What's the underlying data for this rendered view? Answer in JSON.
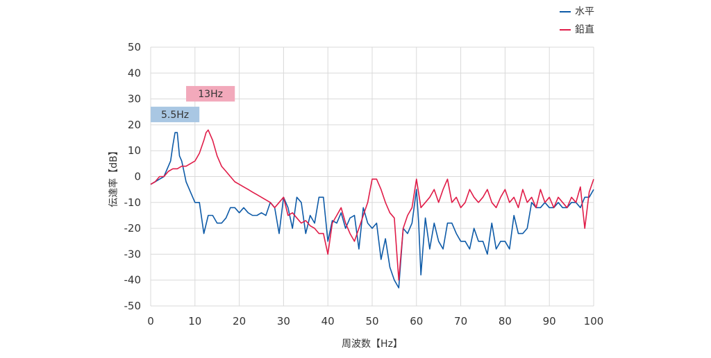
{
  "chart_data": {
    "type": "line",
    "xlabel": "周波数【Hz】",
    "ylabel": "伝達率【dB】",
    "xlim": [
      0,
      100
    ],
    "ylim": [
      -50,
      50
    ],
    "x_ticks": [
      "0",
      "10",
      "20",
      "30",
      "40",
      "50",
      "60",
      "70",
      "80",
      "90",
      "100"
    ],
    "y_ticks": [
      "50",
      "40",
      "30",
      "20",
      "10",
      "0",
      "-10",
      "-20",
      "-30",
      "-40",
      "-50"
    ],
    "grid": true,
    "legend_position": "top-right",
    "annotations": [
      {
        "text": "5.5Hz",
        "color": "#a9c7e3",
        "x_from": 0,
        "x_to": 11,
        "y_from": 21,
        "y_to": 27
      },
      {
        "text": "13Hz",
        "color": "#f2a9bb",
        "x_from": 8,
        "x_to": 19,
        "y_from": 29,
        "y_to": 35
      }
    ],
    "series": [
      {
        "name": "水平",
        "color": "#0d5aa7",
        "points": [
          [
            0,
            -3
          ],
          [
            1,
            -2
          ],
          [
            2,
            -1
          ],
          [
            3,
            0
          ],
          [
            3.5,
            2
          ],
          [
            4,
            4
          ],
          [
            4.5,
            6
          ],
          [
            5,
            12
          ],
          [
            5.5,
            17
          ],
          [
            6,
            17
          ],
          [
            6.5,
            8
          ],
          [
            7,
            6
          ],
          [
            7.5,
            2
          ],
          [
            8,
            -2
          ],
          [
            8.5,
            -4
          ],
          [
            9,
            -6
          ],
          [
            10,
            -10
          ],
          [
            11,
            -10
          ],
          [
            12,
            -22
          ],
          [
            13,
            -15
          ],
          [
            14,
            -15
          ],
          [
            15,
            -18
          ],
          [
            16,
            -18
          ],
          [
            17,
            -16
          ],
          [
            18,
            -12
          ],
          [
            19,
            -12
          ],
          [
            20,
            -14
          ],
          [
            21,
            -12
          ],
          [
            22,
            -14
          ],
          [
            23,
            -15
          ],
          [
            24,
            -15
          ],
          [
            25,
            -14
          ],
          [
            26,
            -15
          ],
          [
            27,
            -10
          ],
          [
            28,
            -12
          ],
          [
            29,
            -22
          ],
          [
            30,
            -8
          ],
          [
            31,
            -12
          ],
          [
            32,
            -20
          ],
          [
            33,
            -8
          ],
          [
            34,
            -10
          ],
          [
            35,
            -22
          ],
          [
            36,
            -15
          ],
          [
            37,
            -18
          ],
          [
            38,
            -8
          ],
          [
            39,
            -8
          ],
          [
            40,
            -25
          ],
          [
            41,
            -17
          ],
          [
            42,
            -18
          ],
          [
            43,
            -14
          ],
          [
            44,
            -20
          ],
          [
            45,
            -16
          ],
          [
            46,
            -15
          ],
          [
            47,
            -28
          ],
          [
            48,
            -12
          ],
          [
            49,
            -18
          ],
          [
            50,
            -20
          ],
          [
            51,
            -18
          ],
          [
            52,
            -32
          ],
          [
            53,
            -24
          ],
          [
            54,
            -35
          ],
          [
            55,
            -40
          ],
          [
            56,
            -43
          ],
          [
            57,
            -20
          ],
          [
            58,
            -22
          ],
          [
            59,
            -18
          ],
          [
            60,
            -5
          ],
          [
            60.5,
            -18
          ],
          [
            61,
            -38
          ],
          [
            62,
            -16
          ],
          [
            63,
            -28
          ],
          [
            64,
            -18
          ],
          [
            65,
            -25
          ],
          [
            66,
            -28
          ],
          [
            67,
            -18
          ],
          [
            68,
            -18
          ],
          [
            69,
            -22
          ],
          [
            70,
            -25
          ],
          [
            71,
            -25
          ],
          [
            72,
            -28
          ],
          [
            73,
            -20
          ],
          [
            74,
            -25
          ],
          [
            75,
            -25
          ],
          [
            76,
            -30
          ],
          [
            77,
            -18
          ],
          [
            78,
            -28
          ],
          [
            79,
            -25
          ],
          [
            80,
            -25
          ],
          [
            81,
            -28
          ],
          [
            82,
            -15
          ],
          [
            83,
            -22
          ],
          [
            84,
            -22
          ],
          [
            85,
            -20
          ],
          [
            86,
            -10
          ],
          [
            87,
            -12
          ],
          [
            88,
            -12
          ],
          [
            89,
            -10
          ],
          [
            90,
            -12
          ],
          [
            91,
            -12
          ],
          [
            92,
            -10
          ],
          [
            93,
            -12
          ],
          [
            94,
            -12
          ],
          [
            95,
            -10
          ],
          [
            96,
            -10
          ],
          [
            97,
            -12
          ],
          [
            98,
            -8
          ],
          [
            99,
            -8
          ],
          [
            100,
            -5
          ]
        ]
      },
      {
        "name": "鉛直",
        "color": "#e01c48",
        "points": [
          [
            0,
            -3
          ],
          [
            1,
            -2
          ],
          [
            2,
            0
          ],
          [
            3,
            0
          ],
          [
            4,
            2
          ],
          [
            5,
            3
          ],
          [
            6,
            3
          ],
          [
            7,
            4
          ],
          [
            8,
            4
          ],
          [
            9,
            5
          ],
          [
            10,
            6
          ],
          [
            11,
            9
          ],
          [
            12,
            14
          ],
          [
            12.5,
            17
          ],
          [
            13,
            18
          ],
          [
            14,
            14
          ],
          [
            15,
            8
          ],
          [
            16,
            4
          ],
          [
            17,
            2
          ],
          [
            18,
            0
          ],
          [
            19,
            -2
          ],
          [
            20,
            -3
          ],
          [
            21,
            -4
          ],
          [
            22,
            -5
          ],
          [
            23,
            -6
          ],
          [
            24,
            -7
          ],
          [
            25,
            -8
          ],
          [
            26,
            -9
          ],
          [
            27,
            -10
          ],
          [
            28,
            -12
          ],
          [
            29,
            -10
          ],
          [
            30,
            -8
          ],
          [
            31,
            -15
          ],
          [
            32,
            -14
          ],
          [
            33,
            -16
          ],
          [
            34,
            -18
          ],
          [
            35,
            -17
          ],
          [
            36,
            -19
          ],
          [
            37,
            -20
          ],
          [
            38,
            -22
          ],
          [
            39,
            -22
          ],
          [
            40,
            -30
          ],
          [
            41,
            -18
          ],
          [
            42,
            -15
          ],
          [
            43,
            -12
          ],
          [
            44,
            -18
          ],
          [
            45,
            -22
          ],
          [
            46,
            -25
          ],
          [
            47,
            -20
          ],
          [
            48,
            -15
          ],
          [
            49,
            -10
          ],
          [
            50,
            -1
          ],
          [
            51,
            -1
          ],
          [
            52,
            -5
          ],
          [
            53,
            -10
          ],
          [
            54,
            -14
          ],
          [
            55,
            -16
          ],
          [
            56,
            -40
          ],
          [
            57,
            -20
          ],
          [
            58,
            -15
          ],
          [
            59,
            -12
          ],
          [
            60,
            -1
          ],
          [
            61,
            -12
          ],
          [
            62,
            -10
          ],
          [
            63,
            -8
          ],
          [
            64,
            -5
          ],
          [
            65,
            -10
          ],
          [
            66,
            -5
          ],
          [
            67,
            -1
          ],
          [
            68,
            -10
          ],
          [
            69,
            -8
          ],
          [
            70,
            -12
          ],
          [
            71,
            -10
          ],
          [
            72,
            -5
          ],
          [
            73,
            -8
          ],
          [
            74,
            -10
          ],
          [
            75,
            -8
          ],
          [
            76,
            -5
          ],
          [
            77,
            -10
          ],
          [
            78,
            -12
          ],
          [
            79,
            -8
          ],
          [
            80,
            -5
          ],
          [
            81,
            -10
          ],
          [
            82,
            -8
          ],
          [
            83,
            -12
          ],
          [
            84,
            -5
          ],
          [
            85,
            -10
          ],
          [
            86,
            -8
          ],
          [
            87,
            -12
          ],
          [
            88,
            -5
          ],
          [
            89,
            -10
          ],
          [
            90,
            -8
          ],
          [
            91,
            -12
          ],
          [
            92,
            -8
          ],
          [
            93,
            -10
          ],
          [
            94,
            -12
          ],
          [
            95,
            -8
          ],
          [
            96,
            -10
          ],
          [
            97,
            -4
          ],
          [
            98,
            -20
          ],
          [
            99,
            -6
          ],
          [
            100,
            -1
          ]
        ]
      }
    ]
  }
}
